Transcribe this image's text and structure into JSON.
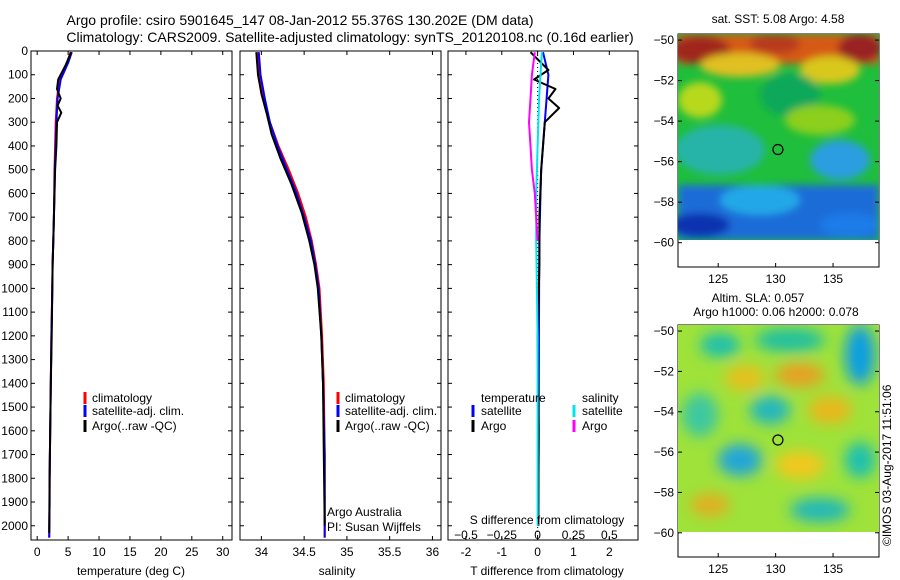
{
  "header": {
    "title_line1": "Argo profile: csiro 5901645_147 08-Jan-2012 55.376S 130.202E (DM data)",
    "title_line2": "Climatology: CARS2009. Satellite-adjusted climatology: synTS_20120108.nc (0.16d earlier)"
  },
  "legend_clim": {
    "climatology": "climatology",
    "satadj": "satellite-adj. clim.",
    "argo": "Argo(..raw -QC)"
  },
  "legend_diff": {
    "temperature": "temperature",
    "salinity": "salinity",
    "satellite": "satellite",
    "argo": "Argo"
  },
  "credits": {
    "line1": "Argo Australia",
    "line2": "PI: Susan Wijffels"
  },
  "sst_map": {
    "title": "sat. SST: 5.08 Argo: 4.58"
  },
  "sla_map": {
    "title_line1": "Altim. SLA: 0.057",
    "title_line2": "Argo h1000: 0.06 h2000: 0.078"
  },
  "watermark": "©IMOS 03-Aug-2017 11:51:06",
  "colors": {
    "climatology": "#ff0000",
    "satellite": "#0000ff",
    "argo": "#000000",
    "sal_satellite": "#00e5ee",
    "sal_argo": "#ff00ff"
  },
  "chart_data": [
    {
      "type": "line",
      "xlabel": "temperature (deg C)",
      "ylim": [
        2060,
        0
      ],
      "xlim": [
        -1,
        31.5
      ],
      "xticks": [
        0,
        5,
        10,
        15,
        20,
        25,
        30
      ],
      "yticks": [
        0,
        100,
        200,
        300,
        400,
        500,
        600,
        700,
        800,
        900,
        1000,
        1100,
        1200,
        1300,
        1400,
        1500,
        1600,
        1700,
        1800,
        1900,
        2000
      ],
      "series": [
        {
          "name": "climatology",
          "color": "#ff0000",
          "x": [
            5.4,
            4.8,
            3.6,
            3.2,
            3.0,
            2.9,
            2.8,
            2.75,
            2.7,
            2.6,
            2.5,
            2.45,
            2.3,
            2.2,
            2.1,
            2.0,
            2.0,
            1.95
          ],
          "y": [
            5,
            50,
            120,
            200,
            300,
            400,
            500,
            600,
            700,
            800,
            900,
            1000,
            1200,
            1400,
            1600,
            1800,
            1900,
            2050
          ]
        },
        {
          "name": "satellite-adj. clim.",
          "color": "#0000ff",
          "x": [
            5.6,
            5.0,
            3.8,
            3.3,
            3.1,
            3.0,
            2.85,
            2.8,
            2.7,
            2.6,
            2.5,
            2.45,
            2.3,
            2.2,
            2.1,
            2.0,
            2.0,
            1.95
          ],
          "y": [
            5,
            50,
            120,
            200,
            300,
            400,
            500,
            600,
            700,
            800,
            900,
            1000,
            1200,
            1400,
            1600,
            1800,
            1900,
            2050
          ]
        },
        {
          "name": "Argo(..raw -QC)",
          "color": "#000000",
          "x": [
            5.5,
            4.6,
            3.4,
            3.2,
            3.8,
            3.3,
            3.9,
            3.2,
            3.1,
            2.9,
            2.8,
            2.7,
            2.6,
            2.5,
            2.45,
            2.35,
            2.2,
            2.1,
            2.0,
            1.95
          ],
          "y": [
            5,
            60,
            120,
            160,
            200,
            230,
            260,
            300,
            400,
            500,
            600,
            700,
            800,
            900,
            1000,
            1200,
            1400,
            1600,
            1800,
            2030
          ]
        }
      ]
    },
    {
      "type": "line",
      "xlabel": "salinity",
      "ylim": [
        2060,
        0
      ],
      "xlim": [
        33.75,
        36.1
      ],
      "xticks": [
        34,
        34.5,
        35,
        35.5,
        36
      ],
      "xticklabels": [
        "34",
        "34.5",
        "35",
        "35.5",
        "36"
      ],
      "series": [
        {
          "name": "climatology",
          "color": "#ff0000",
          "x": [
            33.96,
            33.98,
            34.03,
            34.1,
            34.2,
            34.32,
            34.43,
            34.52,
            34.59,
            34.64,
            34.68,
            34.71,
            34.73,
            34.74,
            34.74
          ],
          "y": [
            5,
            100,
            200,
            300,
            400,
            500,
            600,
            700,
            800,
            900,
            1000,
            1200,
            1400,
            1700,
            2050
          ]
        },
        {
          "name": "satellite-adj. clim.",
          "color": "#0000ff",
          "x": [
            33.97,
            33.99,
            34.04,
            34.1,
            34.19,
            34.3,
            34.41,
            34.5,
            34.58,
            34.63,
            34.67,
            34.7,
            34.72,
            34.74,
            34.74
          ],
          "y": [
            5,
            100,
            200,
            300,
            400,
            500,
            600,
            700,
            800,
            900,
            1000,
            1200,
            1400,
            1700,
            2050
          ]
        },
        {
          "name": "Argo(..raw -QC)",
          "color": "#000000",
          "x": [
            33.94,
            33.96,
            34.0,
            34.06,
            34.12,
            34.22,
            34.35,
            34.47,
            34.56,
            34.62,
            34.66,
            34.7,
            34.72,
            34.73,
            34.74
          ],
          "y": [
            5,
            100,
            180,
            260,
            350,
            450,
            560,
            680,
            800,
            900,
            1000,
            1200,
            1400,
            1700,
            2000
          ]
        }
      ],
      "annotations": [
        "Argo Australia",
        "PI: Susan Wijffels"
      ]
    },
    {
      "type": "line",
      "xlabel": "T difference from climatology",
      "x2label": "S difference from climatology",
      "ylim": [
        2060,
        0
      ],
      "xlim": [
        -2.5,
        2.8
      ],
      "xticks": [
        -2,
        -1,
        0,
        1,
        2
      ],
      "x2ticks": [
        -0.5,
        -0.25,
        0,
        0.25,
        0.5
      ],
      "x2ticklabels": [
        "−0.5",
        "−0.25",
        "0",
        "0.25",
        "0.5"
      ],
      "series": [
        {
          "name": "temperature satellite",
          "color": "#0000ff",
          "x": [
            0.15,
            0.3,
            0.25,
            0.2,
            0.15,
            0.1,
            0.08,
            0.05,
            0.04,
            0.03,
            0.02
          ],
          "y": [
            5,
            100,
            200,
            300,
            400,
            500,
            600,
            800,
            1000,
            1500,
            2000
          ]
        },
        {
          "name": "temperature Argo",
          "color": "#000000",
          "x": [
            -0.2,
            0.3,
            -0.1,
            0.5,
            0.3,
            0.6,
            0.2,
            0.15,
            0.1,
            0.05,
            0.05,
            0.0,
            0.03,
            0.02
          ],
          "y": [
            5,
            80,
            120,
            160,
            200,
            240,
            300,
            400,
            500,
            700,
            900,
            1200,
            1600,
            2000
          ]
        },
        {
          "name": "salinity satellite",
          "color": "#00e5ee",
          "x": [
            0.03,
            0.02,
            0.01,
            0.0,
            -0.01,
            -0.01,
            0.0,
            0.0,
            0.0
          ],
          "y": [
            5,
            100,
            200,
            400,
            600,
            800,
            1200,
            1600,
            2000
          ]
        },
        {
          "name": "salinity Argo",
          "color": "#ff00ff",
          "x": [
            -0.02,
            -0.04,
            -0.05,
            -0.06,
            -0.05,
            -0.04,
            -0.02,
            -0.01,
            0.0
          ],
          "y": [
            5,
            100,
            200,
            300,
            400,
            500,
            600,
            700,
            800
          ]
        }
      ]
    },
    {
      "type": "heatmap",
      "title": "sat. SST: 5.08 Argo: 4.58",
      "xlim": [
        121.5,
        139
      ],
      "ylim": [
        -61.2,
        -49.7
      ],
      "xticks": [
        125,
        130,
        135
      ],
      "yticks": [
        -50,
        -52,
        -54,
        -56,
        -58,
        -60
      ],
      "yticklabels": [
        "−50",
        "−52",
        "−54",
        "−56",
        "−58",
        "−60"
      ],
      "marker": [
        130.2,
        -55.4
      ]
    },
    {
      "type": "heatmap",
      "title": "Altim. SLA: 0.057",
      "xlim": [
        121.5,
        139
      ],
      "ylim": [
        -61.2,
        -49.7
      ],
      "xticks": [
        125,
        130,
        135
      ],
      "yticks": [
        -50,
        -52,
        -54,
        -56,
        -58,
        -60
      ],
      "yticklabels": [
        "−50",
        "−52",
        "−54",
        "−56",
        "−58",
        "−60"
      ],
      "marker": [
        130.2,
        -55.4
      ]
    }
  ]
}
